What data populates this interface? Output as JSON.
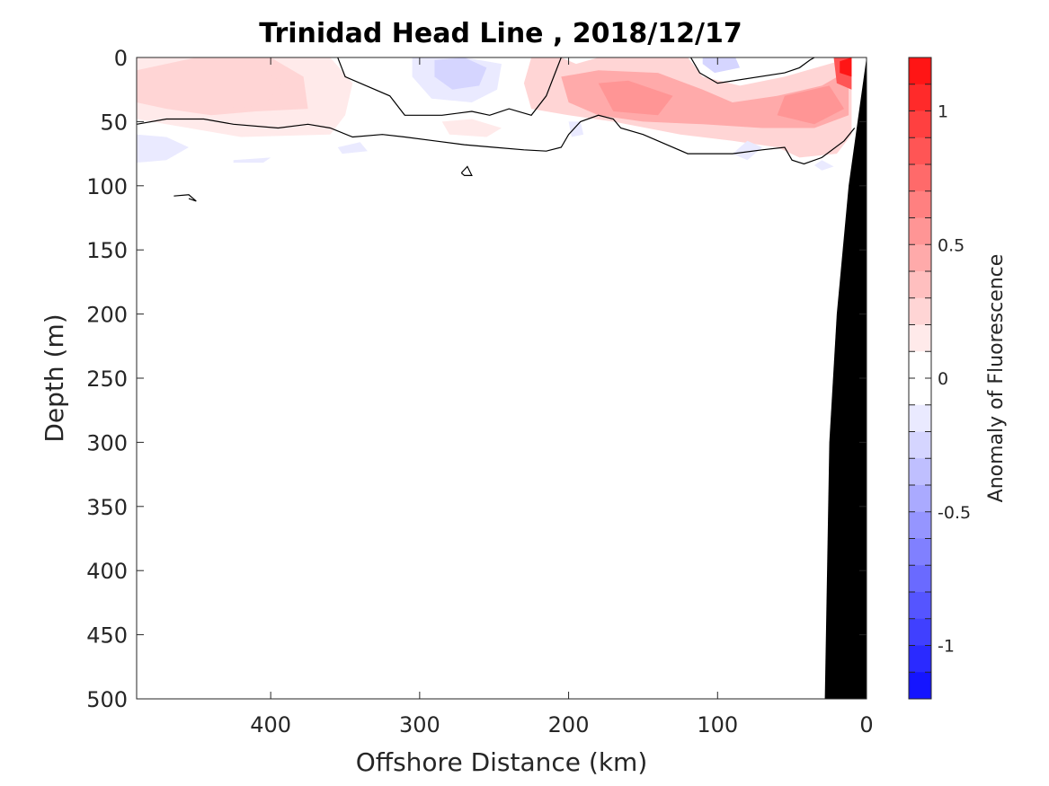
{
  "chart_data": {
    "type": "contour",
    "title": "Trinidad Head Line , 2018/12/17",
    "xlabel": "Offshore Distance (km)",
    "ylabel": "Depth (m)",
    "xlim": [
      490,
      0
    ],
    "ylim": [
      0,
      500
    ],
    "x_ticks": [
      400,
      300,
      200,
      100,
      0
    ],
    "y_ticks": [
      0,
      50,
      100,
      150,
      200,
      250,
      300,
      350,
      400,
      450,
      500
    ],
    "colorbar": {
      "label": "Anomaly of Fluorescence",
      "clim": [
        -1.2,
        1.2
      ],
      "level_step": 0.1,
      "ticks": [
        1,
        0.5,
        0,
        -0.5,
        -1
      ],
      "tick_labels": [
        "1",
        "0.5",
        "0",
        "-0.5",
        "-1"
      ],
      "colormap": {
        "negative": "#0000ff",
        "zero": "#ffffff",
        "positive": "#ff0000"
      }
    },
    "anomaly_patches": [
      {
        "value": 0.15,
        "points": [
          [
            490,
            0
          ],
          [
            400,
            0
          ],
          [
            360,
            0
          ],
          [
            345,
            20
          ],
          [
            350,
            45
          ],
          [
            360,
            60
          ],
          [
            420,
            62
          ],
          [
            470,
            52
          ],
          [
            490,
            48
          ]
        ]
      },
      {
        "value": 0.25,
        "points": [
          [
            490,
            10
          ],
          [
            450,
            0
          ],
          [
            400,
            0
          ],
          [
            378,
            15
          ],
          [
            375,
            40
          ],
          [
            410,
            42
          ],
          [
            440,
            45
          ],
          [
            470,
            40
          ],
          [
            490,
            35
          ]
        ]
      },
      {
        "value": 0.3,
        "points": [
          [
            450,
            12
          ],
          [
            410,
            5
          ],
          [
            392,
            20
          ],
          [
            405,
            38
          ],
          [
            440,
            40
          ]
        ]
      },
      {
        "value": -0.15,
        "points": [
          [
            490,
            60
          ],
          [
            470,
            62
          ],
          [
            455,
            70
          ],
          [
            470,
            80
          ],
          [
            490,
            82
          ]
        ]
      },
      {
        "value": -0.15,
        "points": [
          [
            425,
            80
          ],
          [
            400,
            78
          ],
          [
            405,
            82
          ],
          [
            425,
            82
          ]
        ]
      },
      {
        "value": -0.1,
        "points": [
          [
            355,
            70
          ],
          [
            340,
            66
          ],
          [
            335,
            73
          ],
          [
            352,
            75
          ]
        ]
      },
      {
        "value": -0.15,
        "points": [
          [
            305,
            0
          ],
          [
            270,
            0
          ],
          [
            245,
            5
          ],
          [
            248,
            25
          ],
          [
            265,
            35
          ],
          [
            292,
            32
          ],
          [
            305,
            15
          ]
        ]
      },
      {
        "value": -0.3,
        "points": [
          [
            290,
            2
          ],
          [
            270,
            0
          ],
          [
            255,
            8
          ],
          [
            260,
            22
          ],
          [
            278,
            25
          ],
          [
            290,
            15
          ]
        ]
      },
      {
        "value": 0.15,
        "points": [
          [
            285,
            50
          ],
          [
            265,
            48
          ],
          [
            245,
            55
          ],
          [
            255,
            62
          ],
          [
            280,
            60
          ]
        ]
      },
      {
        "value": 0.2,
        "points": [
          [
            225,
            0
          ],
          [
            205,
            0
          ],
          [
            195,
            5
          ],
          [
            180,
            0
          ],
          [
            120,
            0
          ],
          [
            110,
            15
          ],
          [
            85,
            22
          ],
          [
            55,
            15
          ],
          [
            25,
            5
          ],
          [
            10,
            0
          ],
          [
            10,
            60
          ],
          [
            20,
            75
          ],
          [
            45,
            78
          ],
          [
            60,
            70
          ],
          [
            90,
            65
          ],
          [
            125,
            60
          ],
          [
            170,
            50
          ],
          [
            200,
            45
          ],
          [
            225,
            40
          ],
          [
            230,
            20
          ]
        ]
      },
      {
        "value": 0.4,
        "points": [
          [
            205,
            15
          ],
          [
            180,
            10
          ],
          [
            140,
            12
          ],
          [
            110,
            25
          ],
          [
            90,
            35
          ],
          [
            60,
            30
          ],
          [
            30,
            22
          ],
          [
            12,
            10
          ],
          [
            12,
            45
          ],
          [
            35,
            55
          ],
          [
            70,
            55
          ],
          [
            110,
            52
          ],
          [
            150,
            50
          ],
          [
            180,
            45
          ],
          [
            200,
            35
          ]
        ]
      },
      {
        "value": 0.6,
        "points": [
          [
            180,
            20
          ],
          [
            160,
            18
          ],
          [
            130,
            30
          ],
          [
            140,
            45
          ],
          [
            170,
            42
          ]
        ]
      },
      {
        "value": 0.6,
        "points": [
          [
            55,
            30
          ],
          [
            25,
            22
          ],
          [
            15,
            40
          ],
          [
            35,
            52
          ],
          [
            60,
            45
          ]
        ]
      },
      {
        "value": 0.8,
        "points": [
          [
            22,
            0
          ],
          [
            10,
            0
          ],
          [
            10,
            25
          ],
          [
            20,
            20
          ]
        ]
      },
      {
        "value": 1.1,
        "points": [
          [
            18,
            3
          ],
          [
            10,
            0
          ],
          [
            10,
            15
          ],
          [
            18,
            12
          ]
        ]
      },
      {
        "value": -0.3,
        "points": [
          [
            110,
            0
          ],
          [
            88,
            0
          ],
          [
            85,
            8
          ],
          [
            102,
            12
          ],
          [
            110,
            5
          ]
        ]
      },
      {
        "value": -0.15,
        "points": [
          [
            200,
            50
          ],
          [
            192,
            50
          ],
          [
            190,
            60
          ],
          [
            198,
            62
          ]
        ]
      },
      {
        "value": -0.15,
        "points": [
          [
            80,
            65
          ],
          [
            70,
            70
          ],
          [
            80,
            80
          ],
          [
            90,
            75
          ]
        ]
      },
      {
        "value": -0.1,
        "points": [
          [
            30,
            80
          ],
          [
            22,
            85
          ],
          [
            30,
            88
          ],
          [
            35,
            84
          ]
        ]
      }
    ],
    "zero_contours": [
      [
        [
          490,
          52
        ],
        [
          470,
          48
        ],
        [
          445,
          48
        ],
        [
          425,
          52
        ],
        [
          395,
          55
        ],
        [
          375,
          52
        ],
        [
          360,
          55
        ],
        [
          345,
          62
        ],
        [
          325,
          60
        ],
        [
          310,
          62
        ],
        [
          290,
          65
        ],
        [
          270,
          68
        ],
        [
          250,
          70
        ],
        [
          230,
          72
        ],
        [
          215,
          73
        ],
        [
          205,
          70
        ],
        [
          200,
          60
        ],
        [
          192,
          50
        ],
        [
          180,
          45
        ],
        [
          170,
          48
        ],
        [
          165,
          55
        ],
        [
          150,
          60
        ],
        [
          120,
          75
        ],
        [
          90,
          75
        ],
        [
          70,
          72
        ],
        [
          55,
          70
        ],
        [
          50,
          80
        ],
        [
          42,
          83
        ],
        [
          30,
          78
        ],
        [
          15,
          65
        ],
        [
          8,
          55
        ]
      ],
      [
        [
          355,
          0
        ],
        [
          350,
          15
        ],
        [
          320,
          30
        ],
        [
          310,
          45
        ],
        [
          285,
          45
        ],
        [
          265,
          42
        ],
        [
          253,
          45
        ],
        [
          240,
          40
        ],
        [
          225,
          45
        ],
        [
          215,
          30
        ],
        [
          210,
          15
        ],
        [
          205,
          0
        ]
      ],
      [
        [
          118,
          0
        ],
        [
          112,
          12
        ],
        [
          100,
          20
        ],
        [
          55,
          12
        ],
        [
          45,
          8
        ],
        [
          38,
          2
        ],
        [
          35,
          0
        ]
      ],
      [
        [
          272,
          90
        ],
        [
          268,
          85
        ],
        [
          265,
          92
        ],
        [
          270,
          92
        ],
        [
          272,
          90
        ]
      ],
      [
        [
          465,
          108
        ],
        [
          455,
          107
        ],
        [
          450,
          112
        ],
        [
          455,
          110
        ]
      ]
    ],
    "bathymetry": [
      [
        28,
        500
      ],
      [
        25,
        300
      ],
      [
        20,
        200
      ],
      [
        12,
        100
      ],
      [
        0,
        0
      ],
      [
        0,
        500
      ]
    ]
  }
}
